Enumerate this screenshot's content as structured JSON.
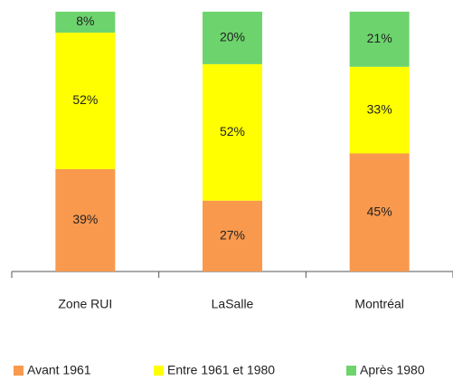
{
  "chart_data": {
    "type": "stacked_bar",
    "categories": [
      "Zone RUI",
      "LaSalle",
      "Montréal"
    ],
    "series": [
      {
        "name": "Avant 1961",
        "color": "#f9994d",
        "values": [
          39,
          27,
          45
        ],
        "value_labels": [
          "39%",
          "27%",
          "45%"
        ]
      },
      {
        "name": "Entre 1961 et 1980",
        "color": "#ffff00",
        "values": [
          52,
          52,
          33
        ],
        "value_labels": [
          "52%",
          "52%",
          "33%"
        ]
      },
      {
        "name": "Après 1980",
        "color": "#6dd46d",
        "values": [
          8,
          20,
          21
        ],
        "value_labels": [
          "8%",
          "20%",
          "21%"
        ]
      }
    ],
    "legend": "bottom"
  }
}
